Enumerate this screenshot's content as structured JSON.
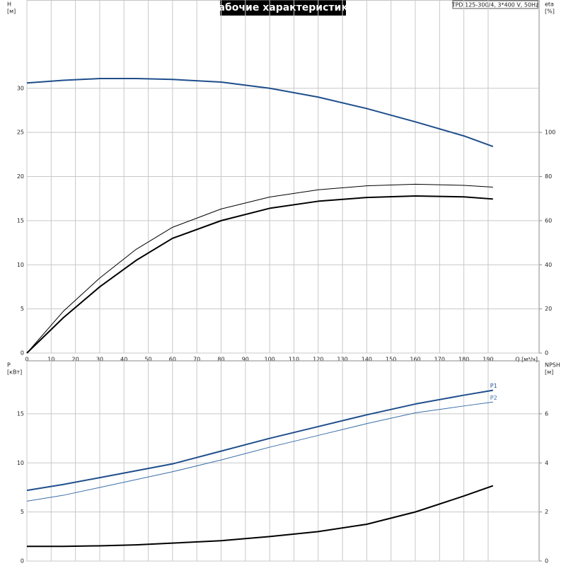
{
  "title": "Рабочие характеристики",
  "info": "TPD 125-300/4, 3*400 V, 50Hz",
  "chart_data": [
    {
      "type": "line",
      "y_label": [
        "H",
        "[м]"
      ],
      "y2_label": [
        "eta",
        "[%]"
      ],
      "x_label": "Q [м³/ч]",
      "x": [
        0,
        15,
        30,
        45,
        60,
        80,
        100,
        120,
        140,
        160,
        180,
        192
      ],
      "xlim": [
        0,
        211
      ],
      "xticks": [
        0,
        10,
        20,
        30,
        40,
        50,
        60,
        70,
        80,
        90,
        100,
        110,
        120,
        130,
        140,
        150,
        160,
        170,
        180,
        190
      ],
      "ylim": [
        0,
        40
      ],
      "yticks": [
        0,
        5,
        10,
        15,
        20,
        25,
        30
      ],
      "y2lim": [
        0,
        160
      ],
      "y2ticks": [
        0,
        20,
        40,
        60,
        80,
        100
      ],
      "grid": true,
      "series": [
        {
          "color": "#1f4e8c",
          "width": 2,
          "values": [
            30.6,
            30.9,
            31.1,
            31.1,
            31.0,
            30.7,
            30.0,
            29.0,
            27.7,
            26.2,
            24.6,
            23.4
          ]
        },
        {
          "color": "#000000",
          "width": 1,
          "axis": "y2",
          "values": [
            0,
            18.9,
            34,
            47,
            57,
            65.3,
            70.7,
            74,
            75.8,
            76.5,
            76,
            75.2
          ]
        },
        {
          "color": "#000000",
          "width": 2,
          "axis": "y2",
          "values": [
            0,
            16,
            30,
            42,
            52,
            60,
            65.6,
            68.8,
            70.5,
            71.2,
            70.8,
            69.8
          ]
        }
      ]
    },
    {
      "type": "line",
      "y_label": [
        "P",
        "[кВт]"
      ],
      "y2_label": [
        "NPSH",
        "[м]"
      ],
      "x": [
        0,
        15,
        30,
        45,
        60,
        80,
        100,
        120,
        140,
        160,
        180,
        192
      ],
      "xlim": [
        0,
        211
      ],
      "xticks": [
        0,
        10,
        20,
        30,
        40,
        50,
        60,
        70,
        80,
        90,
        100,
        110,
        120,
        130,
        140,
        150,
        160,
        170,
        180,
        190
      ],
      "ylim": [
        0,
        20.4
      ],
      "yticks": [
        0,
        5,
        10,
        15
      ],
      "y2lim": [
        0,
        8.16
      ],
      "y2ticks": [
        0,
        2,
        4,
        6
      ],
      "grid": true,
      "series": [
        {
          "name": "P1",
          "color": "#1f4e8c",
          "width": 2,
          "values": [
            7.2,
            7.8,
            8.5,
            9.2,
            9.9,
            11.2,
            12.5,
            13.7,
            14.9,
            16.0,
            16.9,
            17.4
          ]
        },
        {
          "name": "P2",
          "color": "#3a6fa8",
          "width": 1,
          "values": [
            6.1,
            6.7,
            7.5,
            8.3,
            9.1,
            10.3,
            11.6,
            12.8,
            14.0,
            15.1,
            15.8,
            16.2
          ]
        },
        {
          "color": "#000000",
          "width": 2,
          "axis": "y2",
          "values": [
            0.6,
            0.6,
            0.62,
            0.66,
            0.73,
            0.83,
            1.0,
            1.2,
            1.5,
            2.0,
            2.65,
            3.07
          ]
        }
      ]
    }
  ]
}
